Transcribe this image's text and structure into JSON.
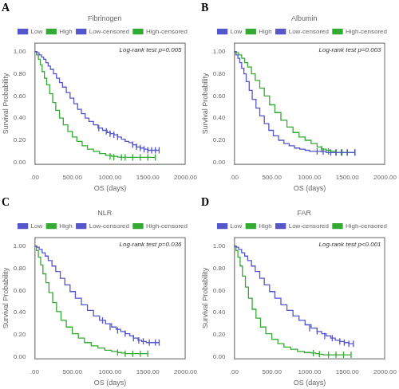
{
  "chart_data": [
    {
      "type": "line",
      "panel_label": "A",
      "title": "Fibrinogen",
      "annotations": [
        "Log-rank test p=0.005"
      ],
      "xlabel": "OS (days)",
      "ylabel": "Survival Probability",
      "xlim": [
        0,
        2000
      ],
      "ylim": [
        -0.02,
        1.08
      ],
      "xticks": [
        {
          "value": 0,
          "label": ".00"
        },
        {
          "value": 500,
          "label": "500.00"
        },
        {
          "value": 1000,
          "label": "1000.00"
        },
        {
          "value": 1500,
          "label": "1500.00"
        },
        {
          "value": 2000,
          "label": "2000.00"
        }
      ],
      "yticks": [
        {
          "value": 0.0,
          "label": "0.00"
        },
        {
          "value": 0.2,
          "label": "0.20"
        },
        {
          "value": 0.4,
          "label": "0.40"
        },
        {
          "value": 0.6,
          "label": "0.60"
        },
        {
          "value": 0.8,
          "label": "0.80"
        },
        {
          "value": 1.0,
          "label": "1.00"
        }
      ],
      "grid": false,
      "legend": "upper right",
      "series": [
        {
          "name": "Low",
          "color": "#5555cc",
          "type": "line",
          "line_style": "steps-post",
          "x": [
            0,
            30,
            60,
            90,
            120,
            150,
            180,
            210,
            250,
            290,
            330,
            370,
            420,
            470,
            520,
            570,
            620,
            670,
            720,
            780,
            840,
            900,
            960,
            1000,
            1050,
            1100,
            1150,
            1200,
            1250,
            1300,
            1350,
            1400,
            1450,
            1500,
            1550,
            1600,
            1650
          ],
          "values": [
            1.0,
            0.99,
            0.97,
            0.95,
            0.93,
            0.9,
            0.87,
            0.84,
            0.8,
            0.76,
            0.72,
            0.68,
            0.63,
            0.58,
            0.53,
            0.48,
            0.44,
            0.4,
            0.37,
            0.34,
            0.31,
            0.29,
            0.27,
            0.26,
            0.25,
            0.23,
            0.21,
            0.19,
            0.18,
            0.16,
            0.14,
            0.13,
            0.12,
            0.11,
            0.11,
            0.11,
            0.11
          ]
        },
        {
          "name": "High",
          "color": "#33aa33",
          "type": "line",
          "line_style": "steps-post",
          "x": [
            0,
            25,
            50,
            75,
            100,
            130,
            160,
            200,
            240,
            280,
            330,
            380,
            440,
            500,
            560,
            630,
            700,
            780,
            860,
            940,
            1020,
            1100,
            1150,
            1200,
            1300,
            1400,
            1500,
            1600
          ],
          "values": [
            1.0,
            0.97,
            0.93,
            0.88,
            0.82,
            0.76,
            0.7,
            0.62,
            0.54,
            0.47,
            0.4,
            0.34,
            0.28,
            0.23,
            0.19,
            0.15,
            0.12,
            0.1,
            0.08,
            0.065,
            0.055,
            0.048,
            0.046,
            0.046,
            0.046,
            0.046,
            0.046,
            0.046
          ]
        },
        {
          "name": "Low-censored",
          "color": "#5555cc",
          "type": "scatter",
          "marker": "|",
          "x": [
            850,
            950,
            1000,
            1050,
            1100,
            1300,
            1350,
            1400,
            1450,
            1500,
            1550,
            1600,
            1650
          ],
          "values": [
            0.31,
            0.28,
            0.26,
            0.25,
            0.23,
            0.16,
            0.14,
            0.13,
            0.12,
            0.11,
            0.11,
            0.11,
            0.11
          ]
        },
        {
          "name": "High-censored",
          "color": "#33aa33",
          "type": "scatter",
          "marker": "|",
          "x": [
            1000,
            1050,
            1150,
            1200,
            1300,
            1400,
            1500,
            1600
          ],
          "values": [
            0.055,
            0.048,
            0.046,
            0.046,
            0.046,
            0.046,
            0.046,
            0.046
          ]
        }
      ]
    },
    {
      "type": "line",
      "panel_label": "B",
      "title": "Albumin",
      "annotations": [
        "Log-rank test p=0.003"
      ],
      "xlabel": "OS (days)",
      "ylabel": "Survival Probability",
      "xlim": [
        0,
        2000
      ],
      "ylim": [
        -0.02,
        1.08
      ],
      "xticks": [
        {
          "value": 0,
          "label": ".00"
        },
        {
          "value": 500,
          "label": "500.00"
        },
        {
          "value": 1000,
          "label": "1000.00"
        },
        {
          "value": 1500,
          "label": "1500.00"
        },
        {
          "value": 2000,
          "label": "2000.00"
        }
      ],
      "yticks": [
        {
          "value": 0.0,
          "label": "0.00"
        },
        {
          "value": 0.2,
          "label": "0.20"
        },
        {
          "value": 0.4,
          "label": "0.40"
        },
        {
          "value": 0.6,
          "label": "0.60"
        },
        {
          "value": 0.8,
          "label": "0.80"
        },
        {
          "value": 1.0,
          "label": "1.00"
        }
      ],
      "grid": false,
      "legend": "upper right",
      "series": [
        {
          "name": "Low",
          "color": "#5555cc",
          "type": "line",
          "line_style": "steps-post",
          "x": [
            0,
            25,
            50,
            75,
            100,
            130,
            160,
            200,
            240,
            290,
            340,
            400,
            460,
            520,
            590,
            660,
            730,
            800,
            870,
            940,
            1000,
            1060,
            1120,
            1180,
            1220,
            1280,
            1350,
            1420,
            1500,
            1600
          ],
          "values": [
            1.0,
            0.97,
            0.94,
            0.9,
            0.85,
            0.8,
            0.73,
            0.65,
            0.57,
            0.49,
            0.42,
            0.35,
            0.29,
            0.24,
            0.2,
            0.17,
            0.15,
            0.13,
            0.12,
            0.11,
            0.1,
            0.1,
            0.1,
            0.1,
            0.09,
            0.09,
            0.09,
            0.09,
            0.09,
            0.09
          ]
        },
        {
          "name": "High",
          "color": "#33aa33",
          "type": "line",
          "line_style": "steps-post",
          "x": [
            0,
            30,
            60,
            100,
            140,
            180,
            230,
            280,
            340,
            400,
            470,
            540,
            620,
            700,
            780,
            860,
            940,
            1020,
            1100,
            1160,
            1220,
            1280,
            1350,
            1430,
            1500,
            1600
          ],
          "values": [
            1.0,
            0.99,
            0.97,
            0.94,
            0.9,
            0.86,
            0.8,
            0.74,
            0.67,
            0.6,
            0.52,
            0.45,
            0.38,
            0.32,
            0.27,
            0.23,
            0.2,
            0.17,
            0.14,
            0.12,
            0.11,
            0.1,
            0.09,
            0.09,
            0.09,
            0.09
          ]
        },
        {
          "name": "Low-censored",
          "color": "#5555cc",
          "type": "scatter",
          "marker": "|",
          "x": [
            1100,
            1180,
            1280,
            1350,
            1420,
            1500,
            1600
          ],
          "values": [
            0.1,
            0.1,
            0.09,
            0.09,
            0.09,
            0.09,
            0.09
          ]
        },
        {
          "name": "High-censored",
          "color": "#33aa33",
          "type": "scatter",
          "marker": "|",
          "x": [
            1160,
            1250,
            1350,
            1430,
            1500,
            1600
          ],
          "values": [
            0.12,
            0.1,
            0.09,
            0.09,
            0.09,
            0.09
          ]
        }
      ]
    },
    {
      "type": "line",
      "panel_label": "C",
      "title": "NLR",
      "annotations": [
        "Log-rank test p=0.036"
      ],
      "xlabel": "OS (days)",
      "ylabel": "Survival Probability",
      "xlim": [
        0,
        2000
      ],
      "ylim": [
        -0.02,
        1.08
      ],
      "xticks": [
        {
          "value": 0,
          "label": ".00"
        },
        {
          "value": 500,
          "label": "500.00"
        },
        {
          "value": 1000,
          "label": "1000.00"
        },
        {
          "value": 1500,
          "label": "1500.00"
        },
        {
          "value": 2000,
          "label": "2000.00"
        }
      ],
      "yticks": [
        {
          "value": 0.0,
          "label": "0.00"
        },
        {
          "value": 0.2,
          "label": "0.20"
        },
        {
          "value": 0.4,
          "label": "0.40"
        },
        {
          "value": 0.6,
          "label": "0.60"
        },
        {
          "value": 0.8,
          "label": "0.80"
        },
        {
          "value": 1.0,
          "label": "1.00"
        }
      ],
      "grid": false,
      "legend": "upper right",
      "series": [
        {
          "name": "Low",
          "color": "#5555cc",
          "type": "line",
          "line_style": "steps-post",
          "x": [
            0,
            30,
            60,
            100,
            140,
            180,
            230,
            280,
            340,
            400,
            470,
            540,
            620,
            700,
            780,
            860,
            940,
            1020,
            1080,
            1140,
            1200,
            1260,
            1310,
            1370,
            1420,
            1480,
            1540,
            1600,
            1650
          ],
          "values": [
            1.0,
            0.99,
            0.97,
            0.94,
            0.91,
            0.87,
            0.82,
            0.77,
            0.71,
            0.65,
            0.59,
            0.53,
            0.47,
            0.42,
            0.37,
            0.33,
            0.3,
            0.27,
            0.25,
            0.23,
            0.21,
            0.19,
            0.17,
            0.15,
            0.14,
            0.13,
            0.13,
            0.13,
            0.13
          ]
        },
        {
          "name": "High",
          "color": "#33aa33",
          "type": "line",
          "line_style": "steps-post",
          "x": [
            0,
            25,
            50,
            80,
            110,
            150,
            190,
            240,
            290,
            350,
            420,
            500,
            580,
            660,
            750,
            840,
            930,
            1020,
            1100,
            1150,
            1200,
            1300,
            1400,
            1500
          ],
          "values": [
            1.0,
            0.96,
            0.9,
            0.83,
            0.75,
            0.67,
            0.58,
            0.49,
            0.41,
            0.33,
            0.27,
            0.21,
            0.17,
            0.13,
            0.1,
            0.08,
            0.06,
            0.05,
            0.04,
            0.035,
            0.03,
            0.03,
            0.03,
            0.03
          ]
        },
        {
          "name": "Low-censored",
          "color": "#5555cc",
          "type": "scatter",
          "marker": "|",
          "x": [
            900,
            1000,
            1100,
            1200,
            1310,
            1380,
            1440,
            1520,
            1600,
            1650
          ],
          "values": [
            0.33,
            0.27,
            0.24,
            0.21,
            0.17,
            0.15,
            0.14,
            0.13,
            0.13,
            0.13
          ]
        },
        {
          "name": "High-censored",
          "color": "#33aa33",
          "type": "scatter",
          "marker": "|",
          "x": [
            1100,
            1200,
            1300,
            1400,
            1500
          ],
          "values": [
            0.04,
            0.03,
            0.03,
            0.03,
            0.03
          ]
        }
      ]
    },
    {
      "type": "line",
      "panel_label": "D",
      "title": "FAR",
      "annotations": [
        "Log-rank test p<0.001"
      ],
      "xlabel": "OS (days)",
      "ylabel": "Survival Probability",
      "xlim": [
        0,
        2000
      ],
      "ylim": [
        -0.02,
        1.08
      ],
      "xticks": [
        {
          "value": 0,
          "label": ".00"
        },
        {
          "value": 500,
          "label": "500.00"
        },
        {
          "value": 1000,
          "label": "1000.00"
        },
        {
          "value": 1500,
          "label": "1500.00"
        },
        {
          "value": 2000,
          "label": "2000.00"
        }
      ],
      "yticks": [
        {
          "value": 0.0,
          "label": "0.00"
        },
        {
          "value": 0.2,
          "label": "0.20"
        },
        {
          "value": 0.4,
          "label": "0.40"
        },
        {
          "value": 0.6,
          "label": "0.60"
        },
        {
          "value": 0.8,
          "label": "0.80"
        },
        {
          "value": 1.0,
          "label": "1.00"
        }
      ],
      "grid": false,
      "legend": "upper right",
      "series": [
        {
          "name": "Low",
          "color": "#5555cc",
          "type": "line",
          "line_style": "steps-post",
          "x": [
            0,
            30,
            60,
            100,
            140,
            180,
            230,
            280,
            340,
            400,
            470,
            540,
            620,
            700,
            780,
            860,
            940,
            1020,
            1100,
            1160,
            1220,
            1280,
            1340,
            1400,
            1460,
            1520,
            1580
          ],
          "values": [
            1.0,
            0.99,
            0.97,
            0.94,
            0.91,
            0.87,
            0.82,
            0.77,
            0.71,
            0.65,
            0.59,
            0.53,
            0.47,
            0.42,
            0.37,
            0.33,
            0.29,
            0.26,
            0.23,
            0.21,
            0.19,
            0.17,
            0.15,
            0.14,
            0.13,
            0.12,
            0.12
          ]
        },
        {
          "name": "High",
          "color": "#33aa33",
          "type": "line",
          "line_style": "steps-post",
          "x": [
            0,
            25,
            50,
            80,
            110,
            150,
            190,
            240,
            290,
            350,
            420,
            500,
            580,
            660,
            750,
            840,
            930,
            1020,
            1080,
            1130,
            1180,
            1250,
            1350,
            1450,
            1550
          ],
          "values": [
            1.0,
            0.96,
            0.9,
            0.82,
            0.73,
            0.63,
            0.53,
            0.43,
            0.35,
            0.27,
            0.21,
            0.16,
            0.12,
            0.09,
            0.07,
            0.05,
            0.04,
            0.035,
            0.03,
            0.025,
            0.02,
            0.02,
            0.02,
            0.02,
            0.02
          ]
        },
        {
          "name": "Low-censored",
          "color": "#5555cc",
          "type": "scatter",
          "marker": "|",
          "x": [
            1000,
            1100,
            1200,
            1300,
            1400,
            1460,
            1520,
            1580
          ],
          "values": [
            0.26,
            0.23,
            0.19,
            0.17,
            0.14,
            0.13,
            0.12,
            0.12
          ]
        },
        {
          "name": "High-censored",
          "color": "#33aa33",
          "type": "scatter",
          "marker": "|",
          "x": [
            1050,
            1130,
            1250,
            1350,
            1450,
            1550
          ],
          "values": [
            0.035,
            0.025,
            0.02,
            0.02,
            0.02,
            0.02
          ]
        }
      ]
    }
  ]
}
